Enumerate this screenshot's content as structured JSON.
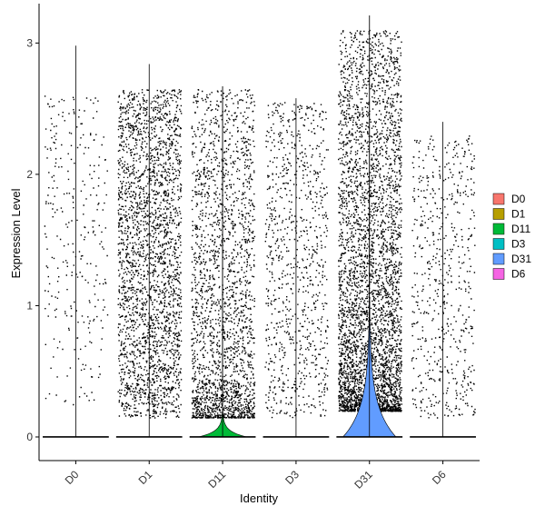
{
  "chart_data": {
    "type": "violin",
    "xlabel": "Identity",
    "ylabel": "Expression Level",
    "categories": [
      "D0",
      "D1",
      "D11",
      "D3",
      "D31",
      "D6"
    ],
    "colors": [
      "#F8766D",
      "#B79F00",
      "#00BA38",
      "#00BFC4",
      "#619CFF",
      "#F564E3"
    ],
    "ylim": [
      -0.18,
      3.3
    ],
    "yticks": [
      0,
      1,
      2,
      3
    ],
    "ytick_labels": [
      "0",
      "1",
      "2",
      "3"
    ],
    "max_values": [
      2.98,
      2.84,
      2.67,
      2.58,
      3.21,
      2.4
    ],
    "violin_peak_widths": [
      0.01,
      0.01,
      0.33,
      0.01,
      0.36,
      0.01
    ],
    "violin_top_values": [
      0.01,
      0.01,
      0.2,
      0.01,
      1.05,
      0.01
    ],
    "jitter_point_counts": [
      300,
      2600,
      2200,
      900,
      4200,
      600
    ],
    "jitter_value_ranges": [
      [
        0.25,
        2.6
      ],
      [
        0.15,
        2.65
      ],
      [
        0.15,
        2.65
      ],
      [
        0.15,
        2.55
      ],
      [
        0.2,
        3.1
      ],
      [
        0.15,
        2.3
      ]
    ],
    "legend": {
      "entries": [
        "D0",
        "D1",
        "D11",
        "D3",
        "D31",
        "D6"
      ],
      "position": "right"
    }
  }
}
